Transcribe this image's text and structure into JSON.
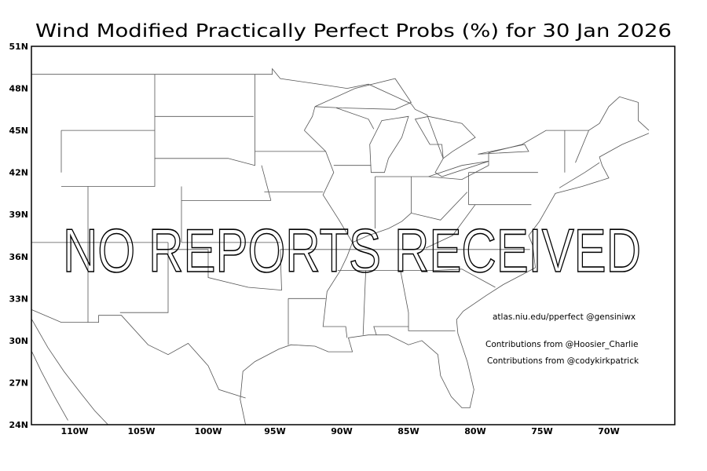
{
  "title": "Wind Modified Practically Perfect Probs (%) for 30 Jan 2026",
  "overlay_message": "NO REPORTS RECEIVED",
  "credits": [
    "atlas.niu.edu/pperfect @gensiniwx",
    "Contributions from @Hoosier_Charlie",
    "Contributions from @codykirkpatrick"
  ],
  "map": {
    "lon_range": [
      -113.2,
      -65.1
    ],
    "lat_range": [
      24,
      51
    ],
    "lat_ticks": [
      "51N",
      "48N",
      "45N",
      "42N",
      "39N",
      "36N",
      "33N",
      "30N",
      "27N",
      "24N"
    ],
    "lon_ticks": [
      "110W",
      "105W",
      "100W",
      "95W",
      "90W",
      "85W",
      "80W",
      "75W",
      "70W"
    ]
  }
}
